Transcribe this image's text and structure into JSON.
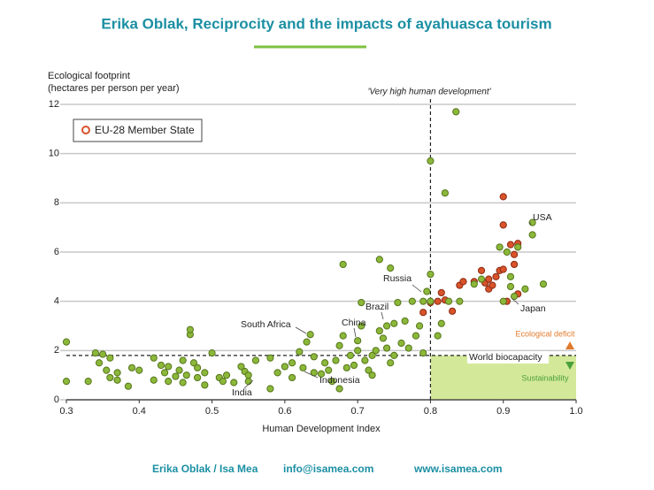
{
  "header": {
    "title": "Erika Oblak, Reciprocity and the impacts of ayahuasca tourism"
  },
  "footer": [
    "Erika Oblak / Isa Mea",
    "info@isamea.com",
    "www.isamea.com"
  ],
  "chart_data": {
    "type": "scatter",
    "xlabel": "Human Development Index",
    "ylabel": [
      "Ecological footprint",
      "(hectares per person per year)"
    ],
    "xlim": [
      0.3,
      1.0
    ],
    "ylim": [
      0,
      12
    ],
    "xticks": [
      0.3,
      0.4,
      0.5,
      0.6,
      0.7,
      0.8,
      0.9,
      {
        "value": 1.0,
        "label": "1.0"
      }
    ],
    "yticks": [
      0,
      2,
      4,
      6,
      8,
      10,
      12
    ],
    "grid": true,
    "reference_lines": {
      "x": 0.8,
      "y": 1.8
    },
    "annotations": [
      "'Very high human development'",
      "World biocapacity",
      "Ecological deficit",
      "Sustainability"
    ],
    "labels": [
      "USA",
      "Russia",
      "Brazil",
      "China",
      "South Africa",
      "Japan",
      "Indonesia",
      "India"
    ],
    "series": [
      {
        "name": "EU-28 Member State",
        "color": "#d9532b",
        "x": [
          0.79,
          0.8,
          0.81,
          0.815,
          0.82,
          0.83,
          0.84,
          0.845,
          0.86,
          0.87,
          0.875,
          0.88,
          0.885,
          0.89,
          0.895,
          0.9,
          0.9,
          0.9,
          0.905,
          0.91,
          0.915,
          0.92,
          0.92,
          0.915,
          0.88
        ],
        "values": [
          3.55,
          3.95,
          4.0,
          4.35,
          4.05,
          3.6,
          4.65,
          4.8,
          4.8,
          5.25,
          4.75,
          4.5,
          4.65,
          5.0,
          5.25,
          5.3,
          7.1,
          8.25,
          4.0,
          6.3,
          5.9,
          6.35,
          4.3,
          5.5,
          4.9
        ]
      },
      {
        "color": "#8cb83a",
        "x": [
          0.3,
          0.3,
          0.33,
          0.34,
          0.345,
          0.35,
          0.355,
          0.36,
          0.36,
          0.37,
          0.37,
          0.385,
          0.39,
          0.4,
          0.42,
          0.42,
          0.43,
          0.435,
          0.44,
          0.44,
          0.45,
          0.455,
          0.46,
          0.46,
          0.465,
          0.47,
          0.47,
          0.475,
          0.48,
          0.48,
          0.49,
          0.49,
          0.5,
          0.51,
          0.515,
          0.52,
          0.53,
          0.54,
          0.545,
          0.55,
          0.55,
          0.56,
          0.58,
          0.58,
          0.59,
          0.6,
          0.61,
          0.61,
          0.62,
          0.625,
          0.63,
          0.635,
          0.64,
          0.64,
          0.65,
          0.655,
          0.66,
          0.665,
          0.67,
          0.675,
          0.675,
          0.68,
          0.68,
          0.685,
          0.69,
          0.695,
          0.7,
          0.7,
          0.705,
          0.705,
          0.71,
          0.715,
          0.72,
          0.72,
          0.725,
          0.73,
          0.73,
          0.735,
          0.74,
          0.74,
          0.745,
          0.745,
          0.75,
          0.75,
          0.755,
          0.76,
          0.765,
          0.77,
          0.775,
          0.78,
          0.785,
          0.79,
          0.79,
          0.795,
          0.8,
          0.8,
          0.8,
          0.81,
          0.815,
          0.82,
          0.825,
          0.835,
          0.84,
          0.86,
          0.87,
          0.895,
          0.905,
          0.91,
          0.91,
          0.915,
          0.92,
          0.93,
          0.94,
          0.94,
          0.955,
          0.9
        ],
        "values": [
          2.35,
          0.75,
          0.75,
          1.9,
          1.5,
          1.85,
          1.2,
          0.9,
          1.7,
          1.1,
          0.8,
          0.55,
          1.3,
          1.2,
          0.8,
          1.7,
          1.4,
          1.1,
          1.35,
          0.75,
          0.95,
          1.2,
          1.6,
          0.7,
          1.0,
          2.65,
          2.85,
          1.5,
          1.3,
          0.9,
          1.1,
          0.6,
          1.9,
          0.9,
          0.75,
          1.0,
          0.7,
          1.35,
          1.15,
          0.75,
          1.0,
          1.6,
          0.45,
          1.7,
          1.1,
          1.35,
          1.5,
          0.9,
          1.95,
          1.3,
          2.35,
          2.65,
          1.1,
          1.75,
          1.05,
          1.5,
          1.2,
          0.75,
          1.6,
          2.2,
          0.45,
          2.6,
          5.5,
          1.3,
          1.8,
          1.4,
          2.4,
          2.0,
          3.95,
          3.0,
          1.6,
          1.2,
          1.0,
          1.8,
          2.0,
          2.8,
          5.7,
          2.5,
          3.0,
          2.1,
          1.5,
          5.35,
          3.1,
          1.8,
          3.95,
          2.3,
          3.2,
          2.1,
          4.0,
          2.6,
          3.0,
          1.9,
          4.0,
          4.4,
          9.7,
          5.1,
          4.0,
          2.6,
          3.1,
          8.4,
          4.0,
          11.7,
          4.0,
          4.7,
          4.9,
          6.2,
          6.0,
          4.6,
          5.0,
          4.2,
          6.2,
          4.5,
          7.2,
          6.7,
          4.7,
          4.0
        ]
      }
    ]
  }
}
